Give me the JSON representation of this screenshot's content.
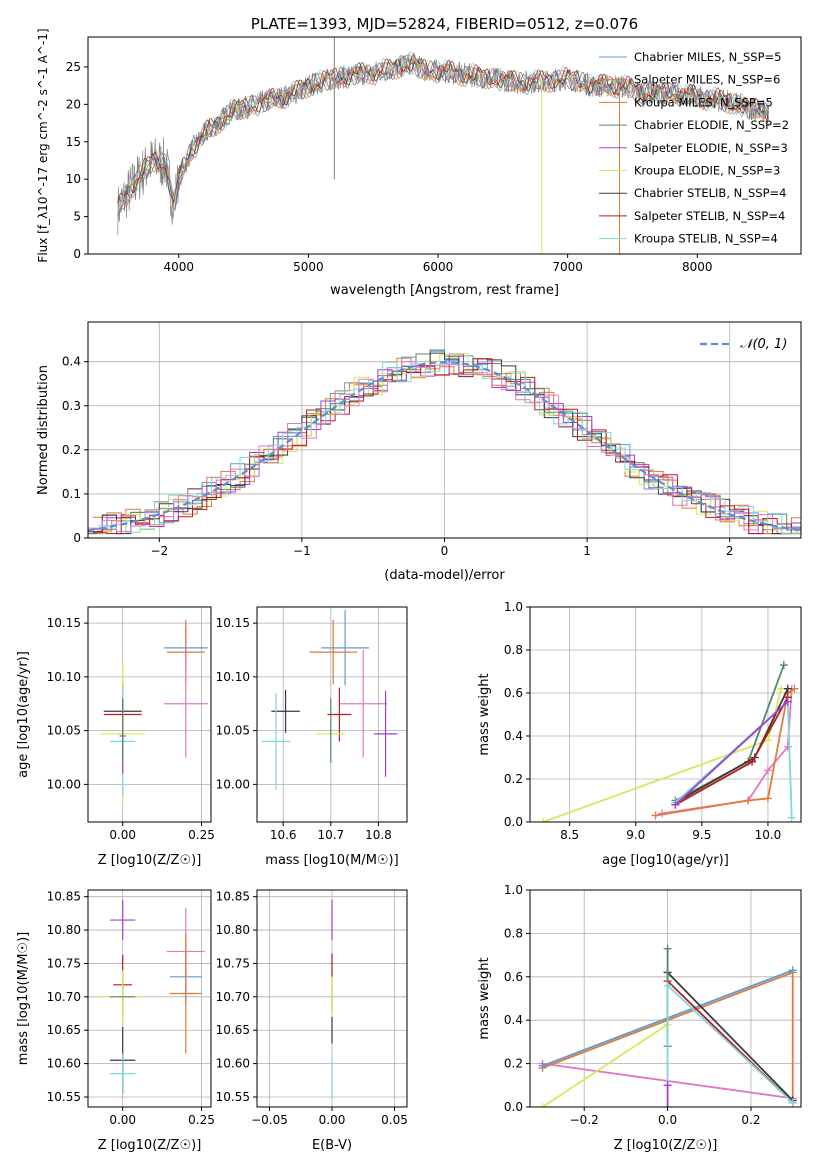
{
  "chart_data": [
    {
      "id": "spectrum",
      "type": "line",
      "title": "PLATE=1393, MJD=52824, FIBERID=0512, z=0.076",
      "xlabel": "wavelength [Angstrom, rest frame]",
      "ylabel": "Flux [f_λ10^-17 erg cm^-2 s^-1 A^-1]",
      "xlim": [
        3300,
        8800
      ],
      "ylim": [
        0,
        29
      ],
      "xticks": [
        4000,
        5000,
        6000,
        7000,
        8000
      ],
      "yticks": [
        0,
        5,
        10,
        15,
        20,
        25
      ],
      "grid": false,
      "legend_position": "upper right",
      "continuum": {
        "x": [
          3530,
          3600,
          3700,
          3800,
          3900,
          3960,
          4000,
          4100,
          4200,
          4300,
          4400,
          4500,
          4700,
          4900,
          5000,
          5200,
          5400,
          5600,
          5800,
          5900,
          6000,
          6200,
          6400,
          6600,
          6800,
          7000,
          7200,
          7400,
          7600,
          7800,
          8000,
          8200,
          8400,
          8550
        ],
        "y": [
          6,
          8,
          10.5,
          12.5,
          12,
          6.5,
          10,
          14,
          16,
          17.5,
          19,
          19.5,
          20.5,
          21.5,
          22.5,
          23.5,
          24,
          24.5,
          25.5,
          24.5,
          24.5,
          24,
          23.5,
          23,
          23,
          23.5,
          22.5,
          22.5,
          21.5,
          21.5,
          21,
          20.5,
          19.5,
          19
        ]
      },
      "series": [
        {
          "name": "Chabrier MILES, N_SSP=5",
          "color": "#5b9bd5"
        },
        {
          "name": "Salpeter MILES, N_SSP=6",
          "color": "#e8743b"
        },
        {
          "name": "Kroupa MILES, N_SSP=5",
          "color": "#e07b39"
        },
        {
          "name": "Chabrier ELODIE, N_SSP=2",
          "color": "#4f8a6a"
        },
        {
          "name": "Salpeter ELODIE, N_SSP=3",
          "color": "#a23fd0"
        },
        {
          "name": "Kroupa ELODIE, N_SSP=3",
          "color": "#d9e85a"
        },
        {
          "name": "Chabrier STELIB, N_SSP=4",
          "color": "#3a3a3a"
        },
        {
          "name": "Salpeter STELIB, N_SSP=4",
          "color": "#b81b1b"
        },
        {
          "name": "Kroupa STELIB, N_SSP=4",
          "color": "#7fd6dc"
        }
      ],
      "data_color": "#808080"
    },
    {
      "id": "residuals",
      "type": "line",
      "xlabel": "(data-model)/error",
      "ylabel": "Normed distribution",
      "xlim": [
        -2.5,
        2.5
      ],
      "ylim": [
        0,
        0.49
      ],
      "xticks": [
        -2,
        -1,
        0,
        1,
        2
      ],
      "yticks": [
        0.0,
        0.1,
        0.2,
        0.3,
        0.4
      ],
      "grid": true,
      "legend": {
        "label": "𝒩(0, 1)",
        "position": "upper right"
      },
      "gaussian": {
        "mean": 0,
        "sigma": 1,
        "color": "#5b8fd9"
      },
      "series_colors": [
        "#5b9bd5",
        "#e8743b",
        "#e07b39",
        "#4f8a6a",
        "#a23fd0",
        "#d9e85a",
        "#3a3a3a",
        "#b81b1b",
        "#7fd6dc",
        "#e377c2"
      ]
    },
    {
      "id": "age_vs_Z",
      "type": "scatter",
      "xlabel": "Z [log10(Z/Z☉)]",
      "ylabel": "age  [log10(age/yr)]",
      "xlim": [
        -0.11,
        0.28
      ],
      "ylim": [
        9.965,
        10.165
      ],
      "xticks": [
        0.0,
        0.25
      ],
      "xticklabels": [
        "0.00",
        "0.25"
      ],
      "yticks": [
        10.0,
        10.05,
        10.1,
        10.15
      ],
      "yticklabels": [
        "10.00",
        "10.05",
        "10.10",
        "10.15"
      ],
      "grid": true,
      "points": [
        {
          "x": 0.0,
          "y": 10.068,
          "xerr": 0.06,
          "yerr": 0.0,
          "color": "#3a3a3a"
        },
        {
          "x": 0.0,
          "y": 10.065,
          "xerr": 0.06,
          "yerr": 0.03,
          "color": "#b81b1b"
        },
        {
          "x": 0.0,
          "y": 10.047,
          "xerr": 0.07,
          "yerr": 0.065,
          "color": "#d9e85a"
        },
        {
          "x": 0.0,
          "y": 10.04,
          "xerr": 0.04,
          "yerr": 0.05,
          "color": "#7fd6dc"
        },
        {
          "x": 0.0,
          "y": 10.045,
          "xerr": 0.01,
          "yerr": 0.035,
          "color": "#a23fd0"
        },
        {
          "x": 0.0,
          "y": 10.05,
          "xerr": 0.0,
          "yerr": 0.03,
          "color": "#4f8a6a"
        },
        {
          "x": 0.2,
          "y": 10.127,
          "xerr": 0.07,
          "yerr": 0.02,
          "color": "#5b9bd5"
        },
        {
          "x": 0.2,
          "y": 10.123,
          "xerr": 0.06,
          "yerr": 0.03,
          "color": "#e07b39"
        },
        {
          "x": 0.2,
          "y": 10.075,
          "xerr": 0.07,
          "yerr": 0.05,
          "color": "#e377c2"
        }
      ]
    },
    {
      "id": "age_vs_mass",
      "type": "scatter",
      "xlabel": "mass [log10(M/M☉)]",
      "ylabel": "",
      "xlim": [
        10.545,
        10.86
      ],
      "ylim": [
        9.965,
        10.165
      ],
      "xticks": [
        10.6,
        10.7,
        10.8
      ],
      "yticks": [
        10.0,
        10.05,
        10.1,
        10.15
      ],
      "yticklabels": [
        "10.00",
        "10.05",
        "10.10",
        "10.15"
      ],
      "grid": true,
      "points": [
        {
          "x": 10.605,
          "y": 10.068,
          "xerr": 0.03,
          "yerr": 0.02,
          "color": "#3a3a3a"
        },
        {
          "x": 10.585,
          "y": 10.04,
          "xerr": 0.03,
          "yerr": 0.045,
          "color": "#7fd6dc"
        },
        {
          "x": 10.718,
          "y": 10.065,
          "xerr": 0.025,
          "yerr": 0.025,
          "color": "#b81b1b"
        },
        {
          "x": 10.7,
          "y": 10.047,
          "xerr": 0.03,
          "yerr": 0.0,
          "color": "#d9e85a"
        },
        {
          "x": 10.7,
          "y": 10.05,
          "xerr": 0.0,
          "yerr": 0.03,
          "color": "#4f8a6a"
        },
        {
          "x": 10.73,
          "y": 10.127,
          "xerr": 0.05,
          "yerr": 0.035,
          "color": "#5b9bd5"
        },
        {
          "x": 10.705,
          "y": 10.123,
          "xerr": 0.05,
          "yerr": 0.03,
          "color": "#e07b39"
        },
        {
          "x": 10.768,
          "y": 10.075,
          "xerr": 0.05,
          "yerr": 0.05,
          "color": "#e377c2"
        },
        {
          "x": 10.815,
          "y": 10.047,
          "xerr": 0.025,
          "yerr": 0.04,
          "color": "#a23fd0"
        }
      ]
    },
    {
      "id": "weight_vs_age",
      "type": "line",
      "xlabel": "age  [log10(age/yr)]",
      "ylabel": "mass weight",
      "xlim": [
        8.2,
        10.25
      ],
      "ylim": [
        0,
        1
      ],
      "xticks": [
        8.5,
        9.0,
        9.5,
        10.0
      ],
      "xticklabels": [
        "8.5",
        "9.0",
        "9.5",
        "10.0"
      ],
      "yticks": [
        0,
        0.2,
        0.4,
        0.6,
        0.8,
        1.0
      ],
      "yticklabels": [
        "0.0",
        "0.2",
        "0.4",
        "0.6",
        "0.8",
        "1.0"
      ],
      "grid": true,
      "series": [
        {
          "color": "#e377c2",
          "x": [
            9.2,
            9.85,
            10.0,
            10.15,
            10.18
          ],
          "y": [
            0.04,
            0.1,
            0.24,
            0.35,
            0.62
          ]
        },
        {
          "color": "#e07b39",
          "x": [
            9.15,
            9.85,
            10.0,
            10.15,
            10.2
          ],
          "y": [
            0.03,
            0.1,
            0.11,
            0.6,
            0.62
          ]
        },
        {
          "color": "#d9e85a",
          "x": [
            8.3,
            10.0,
            10.1
          ],
          "y": [
            0.0,
            0.38,
            0.62
          ]
        },
        {
          "color": "#4f8a6a",
          "x": [
            9.3,
            9.85,
            10.12
          ],
          "y": [
            0.1,
            0.28,
            0.73
          ]
        },
        {
          "color": "#3a3a3a",
          "x": [
            9.3,
            9.9,
            10.15
          ],
          "y": [
            0.09,
            0.3,
            0.62
          ]
        },
        {
          "color": "#b81b1b",
          "x": [
            9.3,
            9.88,
            10.15
          ],
          "y": [
            0.08,
            0.28,
            0.58
          ]
        },
        {
          "color": "#7fd6dc",
          "x": [
            9.3,
            10.15,
            10.18
          ],
          "y": [
            0.09,
            0.56,
            0.02
          ]
        },
        {
          "color": "#a23fd0",
          "x": [
            9.3,
            10.15
          ],
          "y": [
            0.08,
            0.56
          ]
        }
      ]
    },
    {
      "id": "mass_vs_Z",
      "type": "scatter",
      "xlabel": "Z [log10(Z/Z☉)]",
      "ylabel": "mass [log10(M/M☉)]",
      "xlim": [
        -0.11,
        0.28
      ],
      "ylim": [
        10.535,
        10.86
      ],
      "xticks": [
        0.0,
        0.25
      ],
      "xticklabels": [
        "0.00",
        "0.25"
      ],
      "yticks": [
        10.55,
        10.6,
        10.65,
        10.7,
        10.75,
        10.8,
        10.85
      ],
      "yticklabels": [
        "10.55",
        "10.60",
        "10.65",
        "10.70",
        "10.75",
        "10.80",
        "10.85"
      ],
      "grid": true,
      "points": [
        {
          "x": 0.0,
          "y": 10.815,
          "xerr": 0.04,
          "yerr": 0.03,
          "color": "#a23fd0"
        },
        {
          "x": 0.0,
          "y": 10.718,
          "xerr": 0.03,
          "yerr": 0.045,
          "color": "#b81b1b"
        },
        {
          "x": 0.0,
          "y": 10.7,
          "xerr": 0.07,
          "yerr": 0.04,
          "color": "#d9e85a"
        },
        {
          "x": 0.0,
          "y": 10.7,
          "xerr": 0.04,
          "yerr": 0.0,
          "color": "#4f8a6a"
        },
        {
          "x": 0.0,
          "y": 10.605,
          "xerr": 0.04,
          "yerr": 0.05,
          "color": "#3a3a3a"
        },
        {
          "x": 0.0,
          "y": 10.585,
          "xerr": 0.04,
          "yerr": 0.03,
          "color": "#7fd6dc"
        },
        {
          "x": 0.2,
          "y": 10.768,
          "xerr": 0.06,
          "yerr": 0.065,
          "color": "#e377c2"
        },
        {
          "x": 0.2,
          "y": 10.73,
          "xerr": 0.05,
          "yerr": 0.04,
          "color": "#5b9bd5"
        },
        {
          "x": 0.2,
          "y": 10.705,
          "xerr": 0.05,
          "yerr": 0.09,
          "color": "#e07b39"
        }
      ]
    },
    {
      "id": "mass_vs_ebv",
      "type": "scatter",
      "xlabel": "E(B-V)",
      "ylabel": "",
      "xlim": [
        -0.06,
        0.06
      ],
      "ylim": [
        10.535,
        10.86
      ],
      "xticks": [
        -0.05,
        0.0,
        0.05
      ],
      "xticklabels": [
        "−0.05",
        "0.00",
        "0.05"
      ],
      "yticks": [
        10.55,
        10.6,
        10.65,
        10.7,
        10.75,
        10.8,
        10.85
      ],
      "yticklabels": [
        "10.55",
        "10.60",
        "10.65",
        "10.70",
        "10.75",
        "10.80",
        "10.85"
      ],
      "grid": true,
      "points": [
        {
          "x": 0.0,
          "y": 10.815,
          "xerr": 0.0,
          "yerr": 0.03,
          "color": "#a23fd0"
        },
        {
          "x": 0.0,
          "y": 10.72,
          "xerr": 0.0,
          "yerr": 0.045,
          "color": "#b81b1b"
        },
        {
          "x": 0.0,
          "y": 10.7,
          "xerr": 0.0,
          "yerr": 0.03,
          "color": "#d9e85a"
        },
        {
          "x": 0.0,
          "y": 10.65,
          "xerr": 0.0,
          "yerr": 0.02,
          "color": "#3a3a3a"
        },
        {
          "x": 0.0,
          "y": 10.58,
          "xerr": 0.0,
          "yerr": 0.03,
          "color": "#7fd6dc"
        }
      ]
    },
    {
      "id": "weight_vs_Z",
      "type": "line",
      "xlabel": "Z [log10(Z/Z☉)]",
      "ylabel": "mass weight",
      "xlim": [
        -0.33,
        0.32
      ],
      "ylim": [
        0,
        1
      ],
      "xticks": [
        -0.2,
        0.0,
        0.2
      ],
      "xticklabels": [
        "−0.2",
        "0.0",
        "0.2"
      ],
      "yticks": [
        0,
        0.2,
        0.4,
        0.6,
        0.8,
        1.0
      ],
      "yticklabels": [
        "0.0",
        "0.2",
        "0.4",
        "0.6",
        "0.8",
        "1.0"
      ],
      "grid": true,
      "series": [
        {
          "color": "#e377c2",
          "x": [
            -0.3,
            0.3
          ],
          "y": [
            0.2,
            0.04
          ]
        },
        {
          "color": "#e07b39",
          "x": [
            -0.3,
            0.3,
            0.3
          ],
          "y": [
            0.18,
            0.62,
            0.03
          ]
        },
        {
          "color": "#5b9bd5",
          "x": [
            -0.3,
            0.3
          ],
          "y": [
            0.19,
            0.63
          ]
        },
        {
          "color": "#d9e85a",
          "x": [
            -0.3,
            0.0,
            0.0
          ],
          "y": [
            0.0,
            0.38,
            0.62
          ]
        },
        {
          "color": "#3a3a3a",
          "x": [
            0.0,
            0.3
          ],
          "y": [
            0.62,
            0.03
          ]
        },
        {
          "color": "#b81b1b",
          "x": [
            0.0,
            0.3
          ],
          "y": [
            0.58,
            0.02
          ]
        },
        {
          "color": "#4f8a6a",
          "x": [
            0.0,
            0.0
          ],
          "y": [
            0.28,
            0.73
          ]
        },
        {
          "color": "#7fd6dc",
          "x": [
            0.0,
            0.0,
            0.3
          ],
          "y": [
            0.1,
            0.56,
            0.02
          ]
        },
        {
          "color": "#a23fd0",
          "x": [
            0.0,
            0.0
          ],
          "y": [
            0.0,
            0.1
          ]
        }
      ]
    }
  ]
}
